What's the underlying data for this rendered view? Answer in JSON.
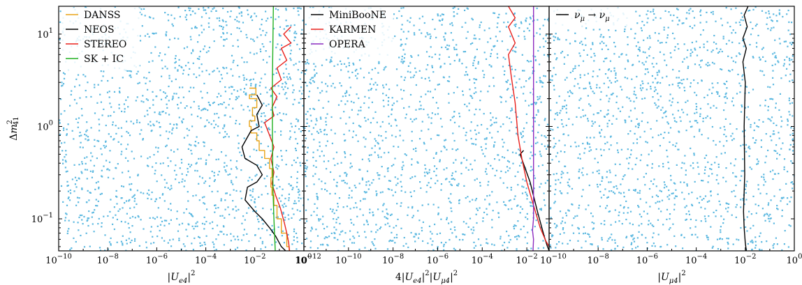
{
  "chart_data": [
    {
      "type": "line",
      "xscale": "log",
      "yscale": "log",
      "xlim": [
        1e-10,
        1
      ],
      "ylim": [
        0.045,
        20
      ],
      "xlabel": "|U_e4|^2",
      "ylabel": "Δm²_41",
      "x_ticks": [
        {
          "v": 1e-10,
          "m": "10",
          "e": "−10"
        },
        {
          "v": 1e-08,
          "m": "10",
          "e": "−8"
        },
        {
          "v": 1e-06,
          "m": "10",
          "e": "−6"
        },
        {
          "v": 0.0001,
          "m": "10",
          "e": "−4"
        },
        {
          "v": 0.01,
          "m": "10",
          "e": "−2"
        },
        {
          "v": 1,
          "m": "10",
          "e": "0"
        }
      ],
      "y_ticks": [
        {
          "v": 0.1,
          "m": "10",
          "e": "−1"
        },
        {
          "v": 1,
          "m": "10",
          "e": "0"
        },
        {
          "v": 10,
          "m": "10",
          "e": "1"
        }
      ],
      "legend_position": "top-left",
      "series": [
        {
          "name": "DANSS",
          "color": "#e8a317",
          "style": "step",
          "points": [
            [
              0.006,
              2.6
            ],
            [
              0.011,
              2.2
            ],
            [
              0.006,
              2.0
            ],
            [
              0.012,
              1.6
            ],
            [
              0.008,
              1.3
            ],
            [
              0.01,
              1.15
            ],
            [
              0.006,
              1.0
            ],
            [
              0.007,
              0.85
            ],
            [
              0.012,
              0.7
            ],
            [
              0.015,
              0.55
            ],
            [
              0.025,
              0.45
            ],
            [
              0.04,
              0.35
            ],
            [
              0.05,
              0.28
            ],
            [
              0.045,
              0.22
            ],
            [
              0.05,
              0.18
            ],
            [
              0.06,
              0.14
            ],
            [
              0.08,
              0.1
            ],
            [
              0.12,
              0.07
            ],
            [
              0.2,
              0.05
            ],
            [
              0.25,
              0.045
            ]
          ]
        },
        {
          "name": "NEOS",
          "color": "#000000",
          "style": "line",
          "points": [
            [
              0.012,
              2.2
            ],
            [
              0.02,
              1.7
            ],
            [
              0.012,
              1.35
            ],
            [
              0.015,
              1.0
            ],
            [
              0.007,
              0.9
            ],
            [
              0.003,
              0.6
            ],
            [
              0.004,
              0.45
            ],
            [
              0.012,
              0.38
            ],
            [
              0.02,
              0.3
            ],
            [
              0.012,
              0.25
            ],
            [
              0.005,
              0.22
            ],
            [
              0.004,
              0.16
            ],
            [
              0.01,
              0.12
            ],
            [
              0.02,
              0.1
            ],
            [
              0.04,
              0.08
            ],
            [
              0.07,
              0.065
            ],
            [
              0.12,
              0.05
            ],
            [
              0.18,
              0.045
            ]
          ]
        },
        {
          "name": "STEREO",
          "color": "#e8201c",
          "style": "line",
          "points": [
            [
              0.3,
              12
            ],
            [
              0.15,
              10
            ],
            [
              0.3,
              8
            ],
            [
              0.12,
              7
            ],
            [
              0.2,
              5.2
            ],
            [
              0.08,
              4.3
            ],
            [
              0.12,
              3.2
            ],
            [
              0.045,
              2.6
            ],
            [
              0.08,
              2.1
            ],
            [
              0.05,
              1.6
            ],
            [
              0.06,
              1.3
            ],
            [
              0.025,
              1.1
            ],
            [
              0.04,
              0.8
            ],
            [
              0.06,
              0.6
            ],
            [
              0.045,
              0.45
            ],
            [
              0.06,
              0.32
            ],
            [
              0.05,
              0.24
            ],
            [
              0.07,
              0.18
            ],
            [
              0.11,
              0.13
            ],
            [
              0.16,
              0.09
            ],
            [
              0.2,
              0.07
            ],
            [
              0.24,
              0.055
            ],
            [
              0.26,
              0.045
            ]
          ]
        },
        {
          "name": "SK + IC",
          "color": "#22b022",
          "style": "line",
          "points": [
            [
              0.057,
              20
            ],
            [
              0.052,
              3
            ],
            [
              0.052,
              0.8
            ],
            [
              0.055,
              0.2
            ],
            [
              0.06,
              0.1
            ],
            [
              0.065,
              0.06
            ],
            [
              0.068,
              0.045
            ]
          ]
        }
      ]
    },
    {
      "type": "line",
      "xscale": "log",
      "yscale": "log",
      "xlim": [
        1e-12,
        0.1
      ],
      "ylim": [
        0.045,
        20
      ],
      "xlabel": "4|U_e4|^2|U_μ4|^2",
      "ylabel": "",
      "x_ticks": [
        {
          "v": 1e-12,
          "m": "10",
          "e": "−12"
        },
        {
          "v": 1e-10,
          "m": "10",
          "e": "−10"
        },
        {
          "v": 1e-08,
          "m": "10",
          "e": "−8"
        },
        {
          "v": 1e-06,
          "m": "10",
          "e": "−6"
        },
        {
          "v": 0.0001,
          "m": "10",
          "e": "−4"
        },
        {
          "v": 0.01,
          "m": "10",
          "e": "−2"
        }
      ],
      "legend_position": "top-left",
      "series": [
        {
          "name": "MiniBooNE",
          "color": "#000000",
          "style": "line",
          "points": [
            [
              0.0072,
              0.55
            ],
            [
              0.005,
              0.5
            ],
            [
              0.007,
              0.4
            ],
            [
              0.014,
              0.25
            ],
            [
              0.03,
              0.12
            ],
            [
              0.06,
              0.065
            ],
            [
              0.08,
              0.052
            ],
            [
              0.1,
              0.045
            ]
          ]
        },
        {
          "name": "KARMEN",
          "color": "#e8201c",
          "style": "line",
          "points": [
            [
              0.0015,
              20
            ],
            [
              0.003,
              15
            ],
            [
              0.0015,
              12
            ],
            [
              0.003,
              8
            ],
            [
              0.0015,
              6
            ],
            [
              0.002,
              3.5
            ],
            [
              0.003,
              1.8
            ],
            [
              0.004,
              0.8
            ],
            [
              0.006,
              0.45
            ],
            [
              0.01,
              0.25
            ],
            [
              0.02,
              0.14
            ],
            [
              0.04,
              0.08
            ],
            [
              0.07,
              0.058
            ],
            [
              0.1,
              0.05
            ]
          ]
        },
        {
          "name": "OPERA",
          "color": "#8c2bbf",
          "style": "line",
          "points": [
            [
              0.02,
              20
            ],
            [
              0.02,
              0.1
            ],
            [
              0.018,
              0.075
            ],
            [
              0.02,
              0.06
            ],
            [
              0.019,
              0.045
            ]
          ]
        }
      ]
    },
    {
      "type": "line",
      "xscale": "log",
      "yscale": "log",
      "xlim": [
        1e-10,
        1
      ],
      "ylim": [
        0.045,
        20
      ],
      "xlabel": "|U_μ4|^2",
      "ylabel": "",
      "x_ticks": [
        {
          "v": 1e-10,
          "m": "10",
          "e": "−10"
        },
        {
          "v": 1e-08,
          "m": "10",
          "e": "−8"
        },
        {
          "v": 1e-06,
          "m": "10",
          "e": "−6"
        },
        {
          "v": 0.0001,
          "m": "10",
          "e": "−4"
        },
        {
          "v": 0.01,
          "m": "10",
          "e": "−2"
        },
        {
          "v": 1,
          "m": "10",
          "e": "0"
        }
      ],
      "legend_position": "top-left",
      "series": [
        {
          "name": "ν_μ → ν_μ",
          "color": "#000000",
          "style": "line",
          "points": [
            [
              0.013,
              20
            ],
            [
              0.009,
              16
            ],
            [
              0.012,
              12
            ],
            [
              0.008,
              9
            ],
            [
              0.011,
              7
            ],
            [
              0.008,
              5
            ],
            [
              0.01,
              3
            ],
            [
              0.009,
              1
            ],
            [
              0.0095,
              0.3
            ],
            [
              0.0085,
              0.12
            ],
            [
              0.009,
              0.08
            ],
            [
              0.01,
              0.055
            ],
            [
              0.011,
              0.045
            ]
          ]
        }
      ]
    }
  ],
  "scatter_color": "#5bb8e0",
  "scatter_note_hidden": false
}
